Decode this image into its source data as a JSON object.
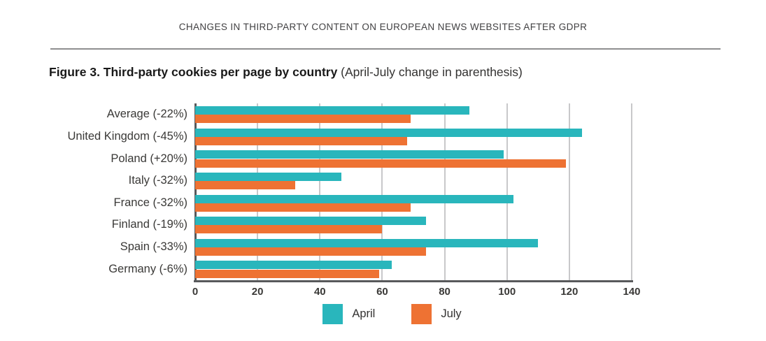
{
  "page": {
    "running_header": "CHANGES IN THIRD-PARTY CONTENT ON EUROPEAN NEWS WEBSITES AFTER GDPR",
    "figure_title_bold": "Figure 3. Third-party cookies per page by country",
    "figure_title_note": " (April-July change in parenthesis)"
  },
  "chart_data": {
    "type": "bar",
    "orientation": "horizontal",
    "title": "Figure 3. Third-party cookies per page by country (April-July change in parenthesis)",
    "categories": [
      "Average (-22%)",
      "United Kingdom (-45%)",
      "Poland (+20%)",
      "Italy (-32%)",
      "France (-32%)",
      "Finland (-19%)",
      "Spain (-33%)",
      "Germany (-6%)"
    ],
    "series": [
      {
        "name": "April",
        "color": "#29b6bc",
        "values": [
          88,
          124,
          99,
          47,
          102,
          74,
          110,
          63
        ]
      },
      {
        "name": "July",
        "color": "#ee7233",
        "values": [
          69,
          68,
          119,
          32,
          69,
          60,
          74,
          59
        ]
      }
    ],
    "xlim": [
      0,
      140
    ],
    "xticks": [
      0,
      20,
      40,
      60,
      80,
      100,
      120,
      140
    ],
    "grid": "vertical",
    "legend_position": "bottom",
    "axis_color": "#58595b",
    "gridline_color": "#c8c8ca",
    "text_color": "#3a3937"
  }
}
